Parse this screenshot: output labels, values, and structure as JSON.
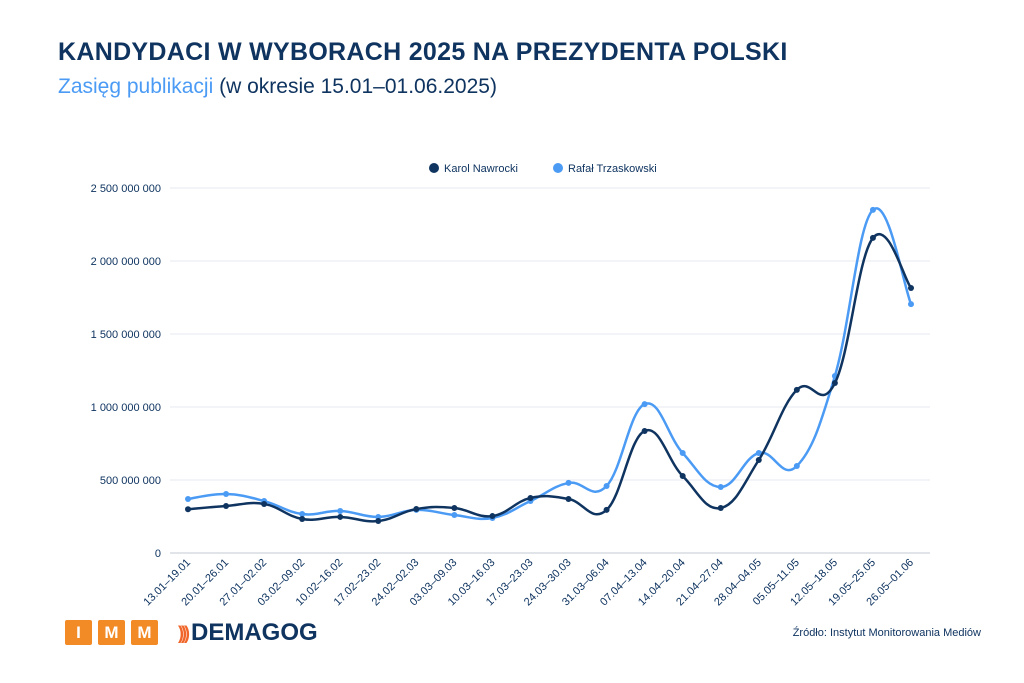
{
  "title": "KANDYDACI W WYBORACH 2025 NA PREZYDENTA POLSKI",
  "subtitle_highlight": "Zasięg publikacji",
  "subtitle_rest": "(w okresie 15.01–01.06.2025)",
  "source": "Źródło: Instytut Monitorowania Mediów",
  "logos": {
    "imm": [
      "I",
      "M",
      "M"
    ],
    "demagog": "DEMAGOG"
  },
  "chart_data": {
    "type": "line",
    "smooth": true,
    "grid": true,
    "legend_position": "top-center",
    "ylim": [
      0,
      2500000000
    ],
    "yticks": [
      0,
      500000000,
      1000000000,
      1500000000,
      2000000000,
      2500000000
    ],
    "ytick_labels": [
      "0",
      "500 000 000",
      "1 000 000 000",
      "1 500 000 000",
      "2 000 000 000",
      "2 500 000 000"
    ],
    "categories": [
      "13.01–19.01",
      "20.01–26.01",
      "27.01–02.02",
      "03.02–09.02",
      "10.02–16.02",
      "17.02–23.02",
      "24.02–02.03",
      "03.03–09.03",
      "10.03–16.03",
      "17.03–23.03",
      "24.03–30.03",
      "31.03–06.04",
      "07.04–13.04",
      "14.04–20.04",
      "21.04–27.04",
      "28.04–04.05",
      "05.05–11.05",
      "12.05–18.05",
      "19.05–25.05",
      "26.05–01.06"
    ],
    "series": [
      {
        "name": "Karol Nawrocki",
        "color": "#0f3460",
        "values": [
          300000000,
          322000000,
          336000000,
          233000000,
          247000000,
          219000000,
          301000000,
          308000000,
          253000000,
          377000000,
          370000000,
          295000000,
          836000000,
          527000000,
          308000000,
          637000000,
          1117000000,
          1164000000,
          2158000000,
          1815000000
        ]
      },
      {
        "name": "Rafał Trzaskowski",
        "color": "#4b9bf5",
        "values": [
          370000000,
          404000000,
          356000000,
          267000000,
          288000000,
          247000000,
          295000000,
          260000000,
          240000000,
          356000000,
          480000000,
          459000000,
          1020000000,
          685000000,
          452000000,
          685000000,
          596000000,
          1212000000,
          2350000000,
          1705000000
        ]
      }
    ]
  }
}
